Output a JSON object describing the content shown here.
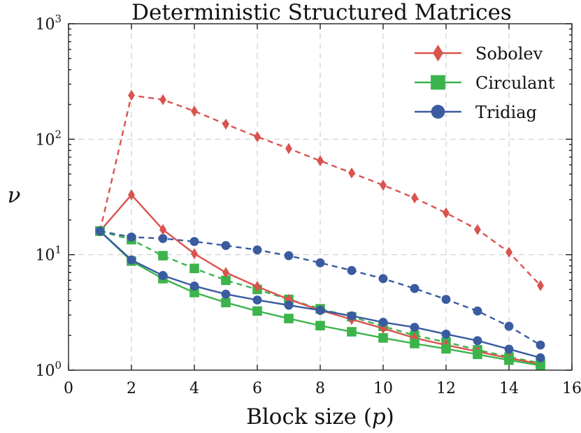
{
  "chart_data": {
    "type": "line",
    "title": "Deterministic Structured Matrices",
    "xlabel_prefix": "Block size (",
    "xlabel_var": "p",
    "xlabel_suffix": ")",
    "ylabel": "ν",
    "xlim": [
      0,
      16
    ],
    "ylim": [
      1,
      1000
    ],
    "yscale": "log",
    "xticks": [
      0,
      2,
      4,
      6,
      8,
      10,
      12,
      14,
      16
    ],
    "yticks": [
      {
        "value": 1,
        "base": "10",
        "exp": "0"
      },
      {
        "value": 10,
        "base": "10",
        "exp": "1"
      },
      {
        "value": 100,
        "base": "10",
        "exp": "2"
      },
      {
        "value": 1000,
        "base": "10",
        "exp": "3"
      }
    ],
    "grid": true,
    "legend_position": "top-right",
    "legend": [
      {
        "name": "Sobolev",
        "color": "#d9534f",
        "marker": "diamond"
      },
      {
        "name": "Circulant",
        "color": "#3cb44b",
        "marker": "square"
      },
      {
        "name": "Tridiag",
        "color": "#3a5ba0",
        "marker": "circle"
      }
    ],
    "series": [
      {
        "name": "Sobolev",
        "style": "dashed",
        "color": "#d9534f",
        "marker": "diamond",
        "x": [
          1,
          2,
          3,
          4,
          5,
          6,
          7,
          8,
          9,
          10,
          11,
          12,
          13,
          14,
          15
        ],
        "y": [
          16,
          240,
          220,
          175,
          135,
          105,
          83,
          65,
          51,
          40,
          31,
          23,
          16.5,
          10.5,
          5.4
        ]
      },
      {
        "name": "Circulant",
        "style": "dashed",
        "color": "#3cb44b",
        "marker": "square",
        "x": [
          1,
          2,
          3,
          4,
          5,
          6,
          7,
          8,
          9,
          10,
          11,
          12,
          13,
          14,
          15
        ],
        "y": [
          16,
          13.5,
          9.8,
          7.6,
          6.0,
          5.0,
          4.1,
          3.4,
          2.9,
          2.4,
          2.0,
          1.75,
          1.5,
          1.3,
          1.15
        ]
      },
      {
        "name": "Tridiag",
        "style": "dashed",
        "color": "#3a5ba0",
        "marker": "circle",
        "x": [
          1,
          2,
          3,
          4,
          5,
          6,
          7,
          8,
          9,
          10,
          11,
          12,
          13,
          14,
          15
        ],
        "y": [
          16,
          14.2,
          13.8,
          13.0,
          12.0,
          11.0,
          9.8,
          8.5,
          7.3,
          6.2,
          5.1,
          4.1,
          3.25,
          2.4,
          1.65
        ]
      },
      {
        "name": "Sobolev",
        "style": "solid",
        "color": "#d9534f",
        "marker": "diamond",
        "x": [
          1,
          2,
          3,
          4,
          5,
          6,
          7,
          8,
          9,
          10,
          11,
          12,
          13,
          14,
          15
        ],
        "y": [
          16,
          33,
          16.5,
          10.2,
          7.0,
          5.3,
          4.1,
          3.3,
          2.75,
          2.3,
          1.9,
          1.65,
          1.45,
          1.27,
          1.13
        ]
      },
      {
        "name": "Circulant",
        "style": "solid",
        "color": "#3cb44b",
        "marker": "square",
        "x": [
          1,
          2,
          3,
          4,
          5,
          6,
          7,
          8,
          9,
          10,
          11,
          12,
          13,
          14,
          15
        ],
        "y": [
          16,
          8.8,
          6.2,
          4.7,
          3.85,
          3.25,
          2.8,
          2.43,
          2.15,
          1.9,
          1.7,
          1.53,
          1.37,
          1.22,
          1.1
        ]
      },
      {
        "name": "Tridiag",
        "style": "solid",
        "color": "#3a5ba0",
        "marker": "circle",
        "x": [
          1,
          2,
          3,
          4,
          5,
          6,
          7,
          8,
          9,
          10,
          11,
          12,
          13,
          14,
          15
        ],
        "y": [
          16,
          9.0,
          6.6,
          5.35,
          4.55,
          4.05,
          3.65,
          3.3,
          2.95,
          2.6,
          2.35,
          2.05,
          1.8,
          1.52,
          1.28
        ]
      }
    ]
  }
}
